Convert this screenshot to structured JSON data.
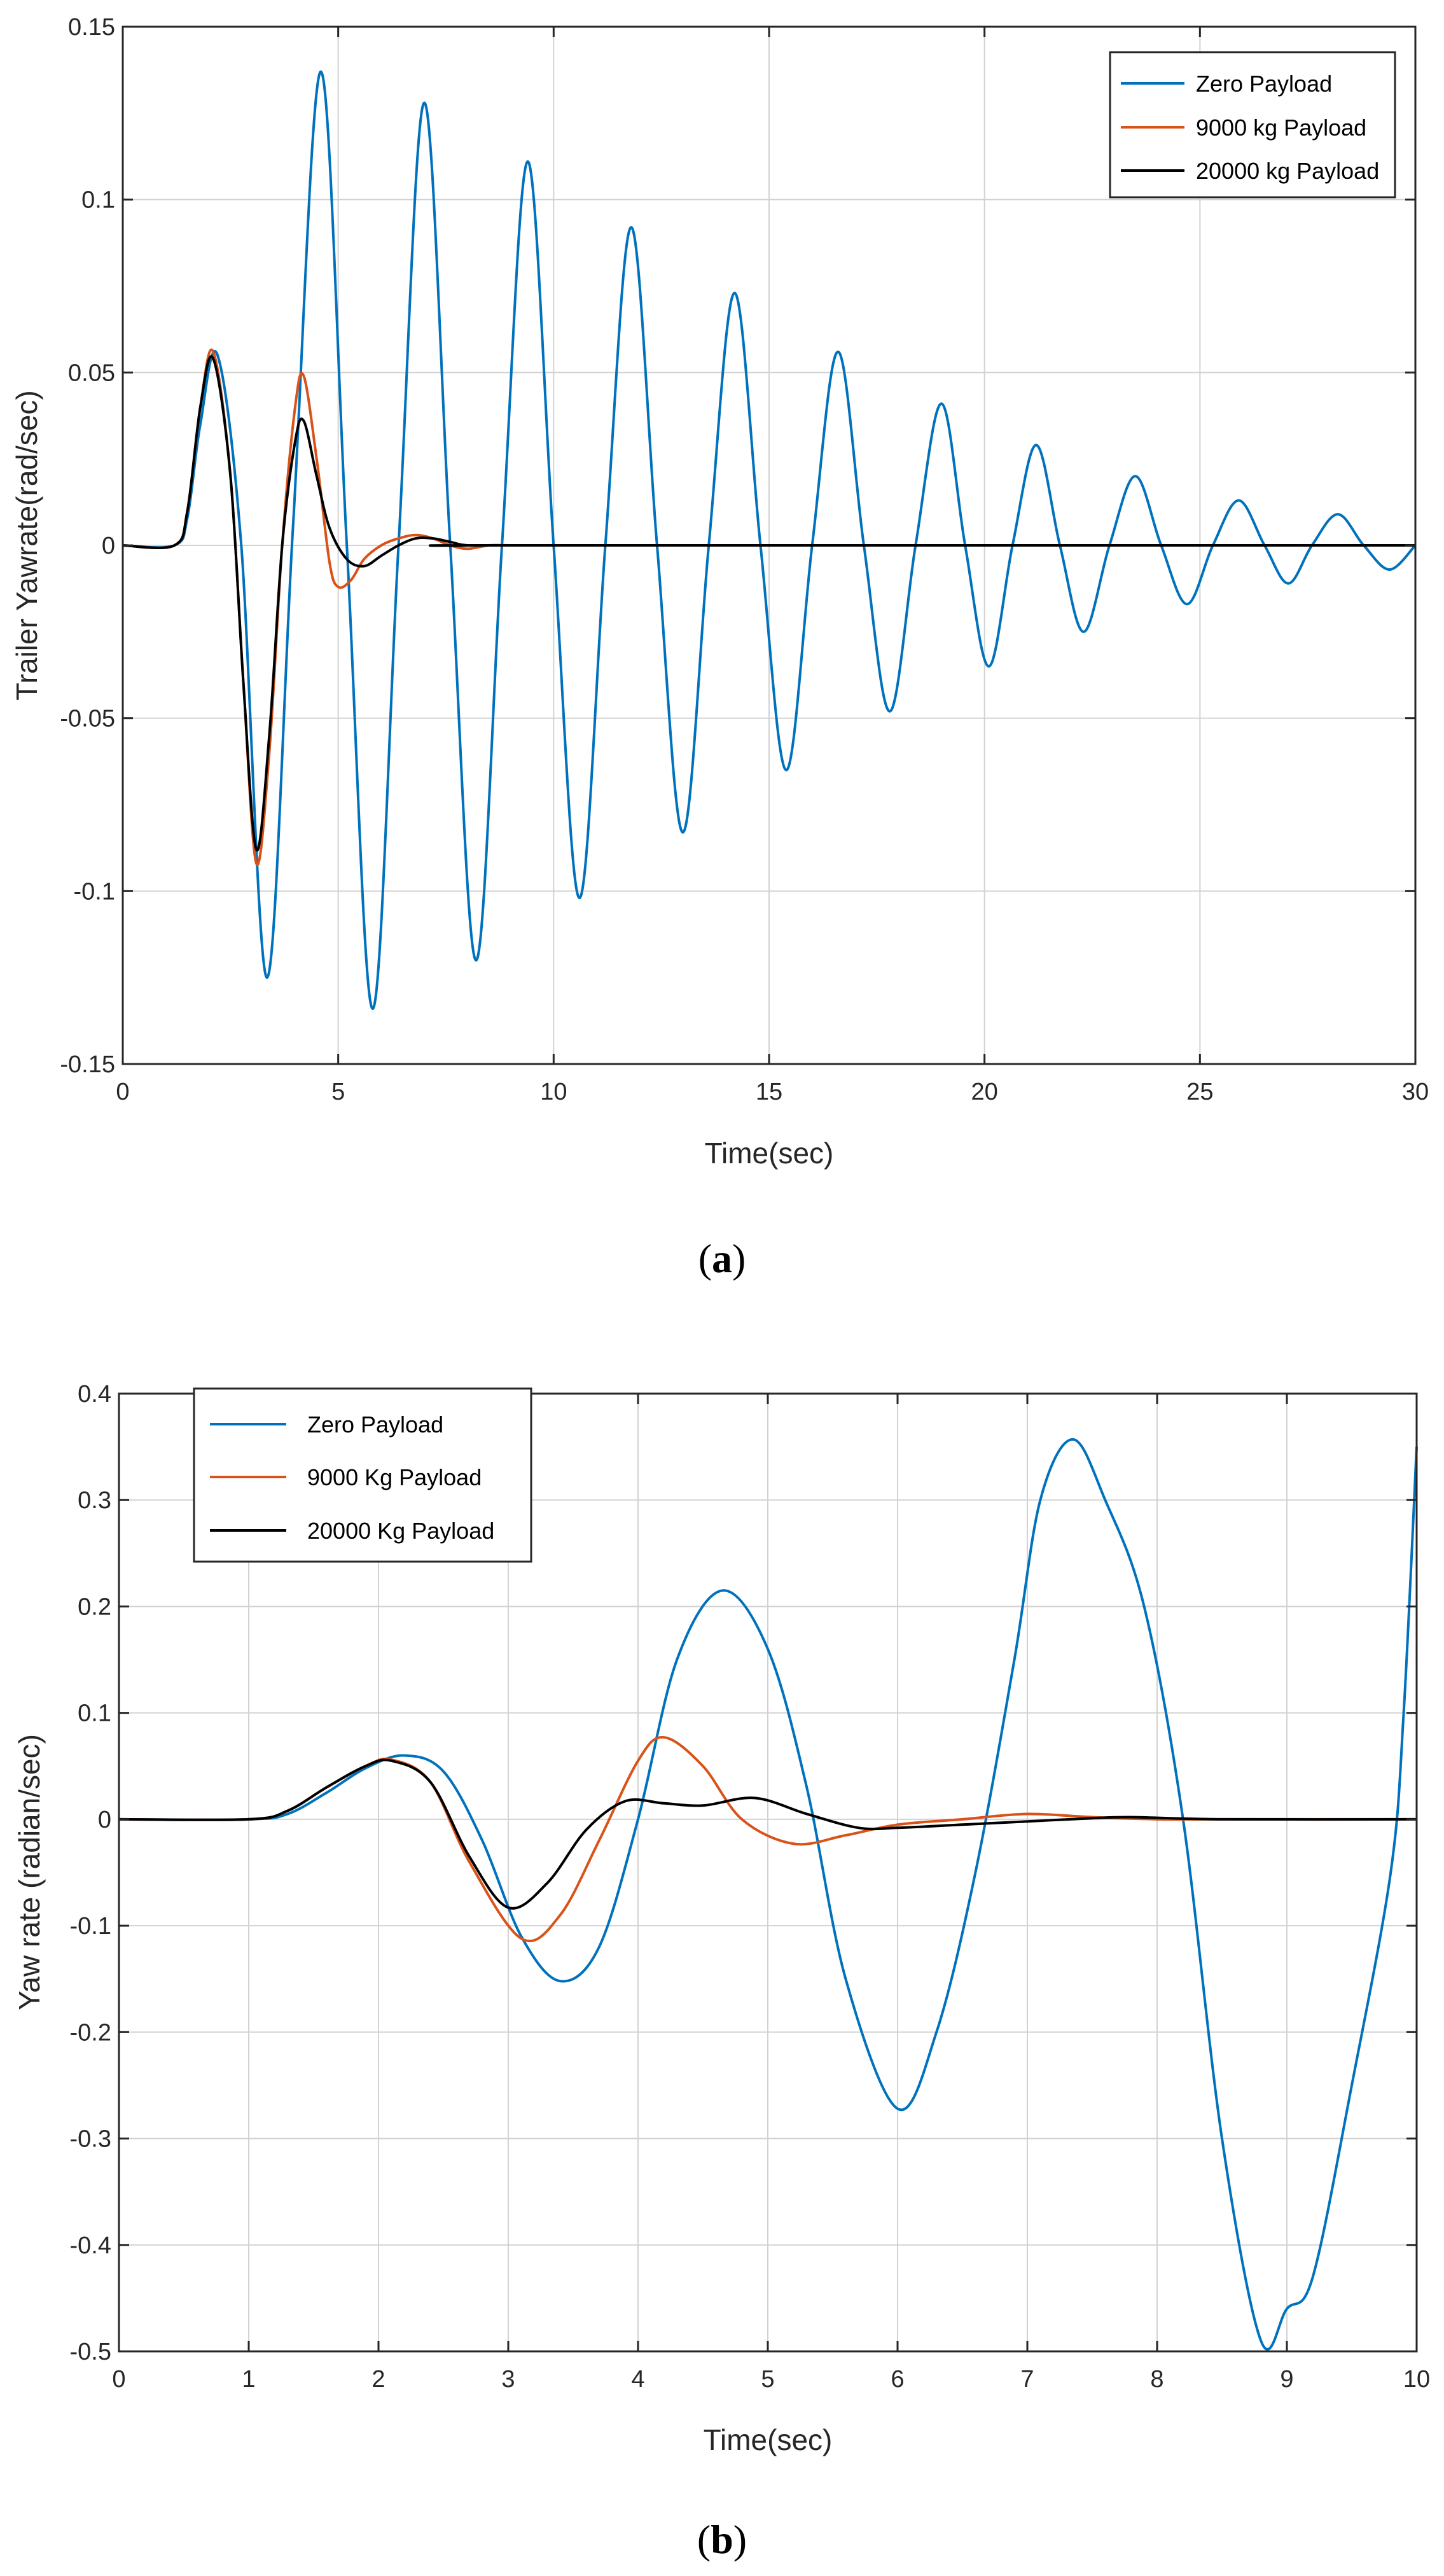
{
  "chart_data": [
    {
      "type": "line",
      "caption_letter": "a",
      "xlabel": "Time(sec)",
      "ylabel": "Trailer Yawrate(rad/sec)",
      "xlim": [
        0,
        30
      ],
      "ylim": [
        -0.15,
        0.15
      ],
      "xticks": [
        0,
        5,
        10,
        15,
        20,
        25,
        30
      ],
      "xtick_labels": [
        "0",
        "5",
        "10",
        "15",
        "20",
        "25",
        "30"
      ],
      "yticks": [
        -0.15,
        -0.1,
        -0.05,
        0,
        0.05,
        0.1,
        0.15
      ],
      "ytick_labels": [
        "-0.15",
        "-0.1",
        "-0.05",
        "0",
        "0.05",
        "0.1",
        "0.15"
      ],
      "grid": true,
      "legend_position": "top-right",
      "series": [
        {
          "name": "Zero Payload",
          "color": "#0072BD",
          "x": [
            0,
            1.2,
            1.5,
            1.8,
            2.2,
            2.75,
            3.35,
            3.95,
            4.6,
            5.2,
            5.8,
            6.4,
            7.0,
            7.6,
            8.2,
            8.8,
            9.4,
            10.0,
            10.6,
            11.2,
            11.8,
            12.4,
            13.0,
            13.6,
            14.2,
            14.8,
            15.4,
            16.0,
            16.6,
            17.2,
            17.8,
            18.4,
            19.0,
            19.55,
            20.1,
            20.65,
            21.2,
            21.75,
            22.3,
            22.9,
            23.5,
            24.1,
            24.7,
            25.3,
            25.9,
            26.5,
            27.05,
            27.6,
            28.2,
            28.8,
            29.4,
            30.0
          ],
          "values": [
            0,
            0,
            0.008,
            0.035,
            0.055,
            0.0,
            -0.125,
            0.005,
            0.137,
            0.0,
            -0.134,
            0.0,
            0.128,
            0.0,
            -0.12,
            0.0,
            0.111,
            0.0,
            -0.102,
            0.0,
            0.092,
            0.0,
            -0.083,
            0.0,
            0.073,
            0.0,
            -0.065,
            0.0,
            0.056,
            0.0,
            -0.048,
            0.0,
            0.041,
            0.0,
            -0.035,
            0.0,
            0.029,
            0.0,
            -0.025,
            0.0,
            0.02,
            0.0,
            -0.017,
            0.0,
            0.013,
            0.0,
            -0.011,
            0.0,
            0.009,
            0.0,
            -0.007,
            0.0
          ]
        },
        {
          "name": "9000 kg Payload",
          "color": "#D95319",
          "x": [
            0,
            1.2,
            1.5,
            1.8,
            2.1,
            2.5,
            2.8,
            3.1,
            3.4,
            3.7,
            4.0,
            4.2,
            4.5,
            4.8,
            5.0,
            5.3,
            5.6,
            6.0,
            6.4,
            6.8,
            7.2,
            7.6,
            8.0,
            8.5,
            9.0,
            9.5,
            30.0
          ],
          "values": [
            0,
            0,
            0.01,
            0.04,
            0.056,
            0.02,
            -0.04,
            -0.092,
            -0.06,
            0.0,
            0.04,
            0.049,
            0.025,
            -0.005,
            -0.012,
            -0.01,
            -0.004,
            0.0,
            0.002,
            0.003,
            0.002,
            0.0,
            -0.001,
            0.0,
            0.0,
            0.0,
            0.0
          ]
        },
        {
          "name": "20000 kg Payload",
          "color": "#000000",
          "x": [
            0,
            1.2,
            1.5,
            1.8,
            2.1,
            2.5,
            2.8,
            3.1,
            3.4,
            3.7,
            4.0,
            4.2,
            4.5,
            4.8,
            5.2,
            5.6,
            6.0,
            6.4,
            6.8,
            7.2,
            7.6,
            8.0,
            9.0,
            30.0
          ],
          "values": [
            0,
            0,
            0.01,
            0.04,
            0.054,
            0.02,
            -0.04,
            -0.088,
            -0.055,
            0.0,
            0.03,
            0.036,
            0.02,
            0.005,
            -0.004,
            -0.006,
            -0.003,
            0.0,
            0.002,
            0.002,
            0.001,
            0.0,
            0.0,
            0.0
          ]
        }
      ]
    },
    {
      "type": "line",
      "caption_letter": "b",
      "xlabel": "Time(sec)",
      "ylabel": "Yaw rate (radian/sec)",
      "xlim": [
        0,
        10
      ],
      "ylim": [
        -0.5,
        0.4
      ],
      "xticks": [
        0,
        1,
        2,
        3,
        4,
        5,
        6,
        7,
        8,
        9,
        10
      ],
      "xtick_labels": [
        "0",
        "1",
        "2",
        "3",
        "4",
        "5",
        "6",
        "7",
        "8",
        "9",
        "10"
      ],
      "yticks": [
        -0.5,
        -0.4,
        -0.3,
        -0.2,
        -0.1,
        0,
        0.1,
        0.2,
        0.3,
        0.4
      ],
      "ytick_labels": [
        "-0.5",
        "-0.4",
        "-0.3",
        "-0.2",
        "-0.1",
        "0",
        "0.1",
        "0.2",
        "0.3",
        "0.4"
      ],
      "grid": true,
      "legend_position": "top-left",
      "series": [
        {
          "name": "Zero Payload",
          "color": "#0072BD",
          "x": [
            0,
            1.0,
            1.3,
            1.6,
            1.9,
            2.2,
            2.5,
            2.8,
            3.1,
            3.4,
            3.7,
            4.0,
            4.3,
            4.65,
            5.0,
            5.3,
            5.6,
            6.0,
            6.3,
            6.6,
            6.9,
            7.1,
            7.35,
            7.6,
            7.9,
            8.2,
            8.5,
            8.8,
            9.0,
            9.2,
            9.5,
            9.8,
            9.9,
            10.0
          ],
          "values": [
            0,
            0,
            0.005,
            0.025,
            0.048,
            0.06,
            0.045,
            -0.02,
            -0.11,
            -0.152,
            -0.12,
            0.0,
            0.15,
            0.215,
            0.16,
            0.03,
            -0.15,
            -0.272,
            -0.2,
            -0.05,
            0.15,
            0.3,
            0.357,
            0.3,
            0.2,
            0.0,
            -0.3,
            -0.49,
            -0.46,
            -0.43,
            -0.25,
            -0.05,
            0.1,
            0.35
          ]
        },
        {
          "name": "9000 Kg Payload",
          "color": "#D95319",
          "x": [
            0,
            1.0,
            1.3,
            1.6,
            1.9,
            2.1,
            2.4,
            2.7,
            3.1,
            3.4,
            3.7,
            4.0,
            4.2,
            4.5,
            4.8,
            5.2,
            5.6,
            6.0,
            6.5,
            7.0,
            7.5,
            8.0,
            8.5,
            10.0
          ],
          "values": [
            0,
            0,
            0.008,
            0.03,
            0.05,
            0.056,
            0.035,
            -0.04,
            -0.112,
            -0.09,
            -0.02,
            0.055,
            0.077,
            0.05,
            0.0,
            -0.023,
            -0.015,
            -0.005,
            0.0,
            0.005,
            0.002,
            0.0,
            0.0,
            0.0
          ]
        },
        {
          "name": "20000 Kg Payload",
          "color": "#000000",
          "x": [
            0,
            1.0,
            1.3,
            1.6,
            1.9,
            2.1,
            2.4,
            2.7,
            3.0,
            3.3,
            3.6,
            3.9,
            4.2,
            4.5,
            4.9,
            5.3,
            5.7,
            6.0,
            6.5,
            7.0,
            7.5,
            7.8,
            8.5,
            10.0
          ],
          "values": [
            0,
            0,
            0.008,
            0.03,
            0.05,
            0.055,
            0.035,
            -0.035,
            -0.083,
            -0.06,
            -0.01,
            0.017,
            0.015,
            0.013,
            0.02,
            0.005,
            -0.008,
            -0.008,
            -0.005,
            -0.002,
            0.001,
            0.002,
            0.0,
            0.0
          ]
        }
      ]
    }
  ]
}
